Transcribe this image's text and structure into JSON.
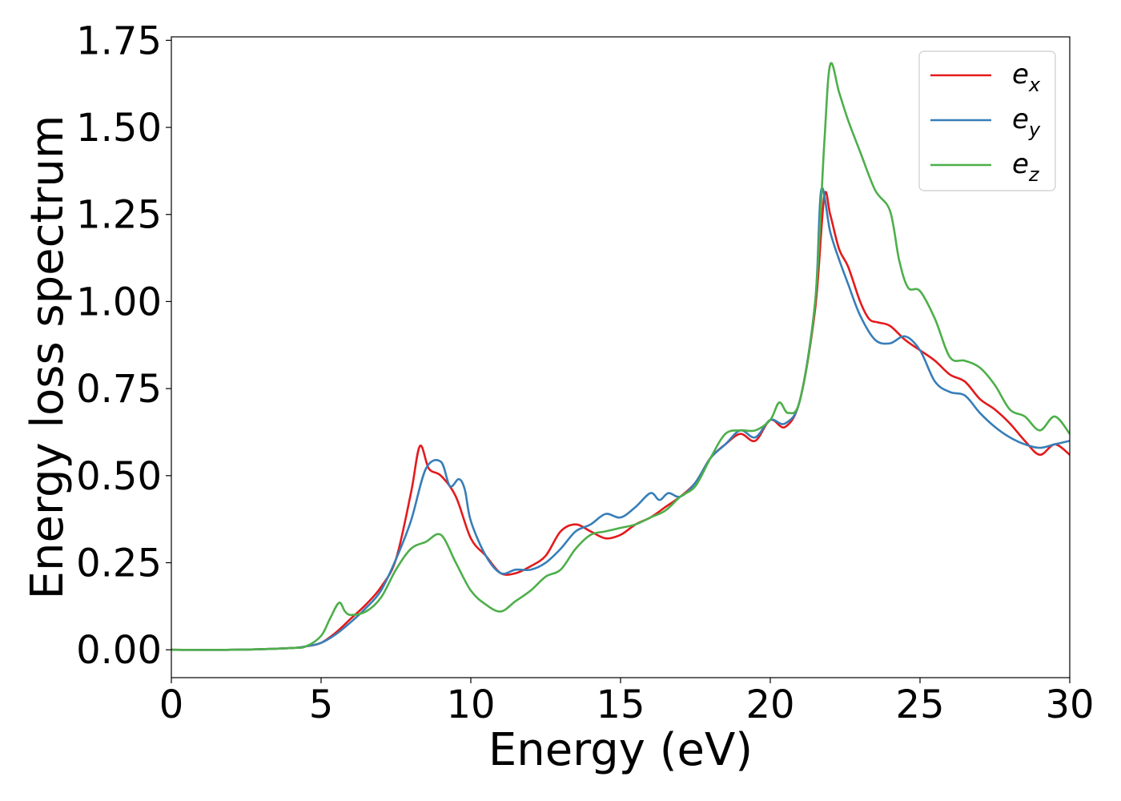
{
  "chart_data": {
    "type": "line",
    "title": "",
    "xlabel": "Energy (eV)",
    "ylabel": "Energy loss spectrum",
    "xlim": [
      0,
      30
    ],
    "ylim": [
      -0.08,
      1.76
    ],
    "x_ticks": [
      0,
      5,
      10,
      15,
      20,
      25,
      30
    ],
    "x_tick_labels": [
      "0",
      "5",
      "10",
      "15",
      "20",
      "25",
      "30"
    ],
    "y_ticks": [
      0.0,
      0.25,
      0.5,
      0.75,
      1.0,
      1.25,
      1.5,
      1.75
    ],
    "y_tick_labels": [
      "0.00",
      "0.25",
      "0.50",
      "0.75",
      "1.00",
      "1.25",
      "1.50",
      "1.75"
    ],
    "grid": false,
    "legend_position": "top-right",
    "series": [
      {
        "name": "e_x",
        "legend_base": "e",
        "legend_sub": "x",
        "color": "#e41a1c",
        "x": [
          0,
          2,
          4,
          4.5,
          5,
          5.5,
          6,
          6.5,
          7,
          7.5,
          8,
          8.3,
          8.6,
          9,
          9.5,
          10,
          10.5,
          11,
          11.5,
          12,
          12.5,
          13,
          13.5,
          14,
          14.5,
          15,
          15.5,
          16,
          16.5,
          17,
          17.5,
          18,
          18.5,
          19,
          19.5,
          20,
          20.5,
          21,
          21.5,
          21.8,
          22,
          22.3,
          22.6,
          23,
          23.3,
          23.6,
          24,
          24.5,
          25,
          25.5,
          26,
          26.5,
          27,
          27.5,
          28,
          28.5,
          29,
          29.5,
          30
        ],
        "y": [
          0.0,
          0.0,
          0.005,
          0.01,
          0.02,
          0.05,
          0.09,
          0.13,
          0.18,
          0.26,
          0.45,
          0.585,
          0.52,
          0.5,
          0.44,
          0.32,
          0.27,
          0.22,
          0.22,
          0.24,
          0.27,
          0.34,
          0.36,
          0.34,
          0.32,
          0.33,
          0.36,
          0.38,
          0.41,
          0.44,
          0.48,
          0.55,
          0.59,
          0.62,
          0.6,
          0.66,
          0.64,
          0.72,
          0.98,
          1.3,
          1.25,
          1.15,
          1.1,
          1.0,
          0.95,
          0.94,
          0.93,
          0.89,
          0.86,
          0.83,
          0.79,
          0.77,
          0.72,
          0.69,
          0.65,
          0.6,
          0.56,
          0.59,
          0.56
        ]
      },
      {
        "name": "e_y",
        "legend_base": "e",
        "legend_sub": "y",
        "color": "#377eb8",
        "x": [
          0,
          2,
          4,
          4.5,
          5,
          5.5,
          6,
          6.5,
          7,
          7.5,
          8,
          8.5,
          9,
          9.3,
          9.6,
          9.8,
          10,
          10.5,
          11,
          11.5,
          12,
          12.5,
          13,
          13.5,
          14,
          14.5,
          15,
          15.5,
          16,
          16.3,
          16.6,
          17,
          17.5,
          18,
          18.5,
          19,
          19.5,
          20,
          20.5,
          21,
          21.5,
          21.7,
          22,
          22.3,
          22.6,
          23,
          23.5,
          24,
          24.5,
          25,
          25.5,
          26,
          26.5,
          27,
          27.5,
          28,
          28.5,
          29,
          29.5,
          30
        ],
        "y": [
          0.0,
          0.0,
          0.005,
          0.01,
          0.02,
          0.045,
          0.08,
          0.12,
          0.17,
          0.26,
          0.37,
          0.52,
          0.54,
          0.47,
          0.49,
          0.46,
          0.37,
          0.27,
          0.22,
          0.23,
          0.23,
          0.25,
          0.29,
          0.34,
          0.36,
          0.39,
          0.38,
          0.41,
          0.45,
          0.43,
          0.45,
          0.44,
          0.48,
          0.55,
          0.59,
          0.63,
          0.61,
          0.66,
          0.65,
          0.72,
          1.0,
          1.32,
          1.2,
          1.12,
          1.05,
          0.96,
          0.89,
          0.88,
          0.9,
          0.86,
          0.77,
          0.74,
          0.73,
          0.68,
          0.64,
          0.61,
          0.59,
          0.58,
          0.59,
          0.6
        ]
      },
      {
        "name": "e_z",
        "legend_base": "e",
        "legend_sub": "z",
        "color": "#4daf4a",
        "x": [
          0,
          2,
          4,
          4.5,
          5,
          5.3,
          5.6,
          5.8,
          6,
          6.5,
          7,
          7.5,
          8,
          8.5,
          9,
          9.5,
          10,
          10.5,
          11,
          11.5,
          12,
          12.5,
          13,
          13.5,
          14,
          14.5,
          15,
          15.5,
          16,
          16.5,
          17,
          17.5,
          18,
          18.5,
          19,
          19.5,
          20,
          20.3,
          20.6,
          21,
          21.5,
          21.8,
          22,
          22.3,
          22.6,
          23,
          23.5,
          24,
          24.3,
          24.6,
          25,
          25.5,
          26,
          26.5,
          27,
          27.5,
          28,
          28.5,
          29,
          29.5,
          30
        ],
        "y": [
          0.0,
          0.0,
          0.005,
          0.01,
          0.04,
          0.09,
          0.135,
          0.11,
          0.1,
          0.11,
          0.15,
          0.23,
          0.29,
          0.31,
          0.33,
          0.25,
          0.17,
          0.13,
          0.11,
          0.14,
          0.17,
          0.21,
          0.23,
          0.29,
          0.33,
          0.34,
          0.35,
          0.36,
          0.38,
          0.4,
          0.44,
          0.47,
          0.55,
          0.62,
          0.63,
          0.63,
          0.66,
          0.71,
          0.68,
          0.72,
          1.0,
          1.45,
          1.68,
          1.6,
          1.52,
          1.43,
          1.32,
          1.26,
          1.12,
          1.04,
          1.03,
          0.95,
          0.84,
          0.83,
          0.81,
          0.76,
          0.69,
          0.67,
          0.63,
          0.67,
          0.62
        ]
      }
    ]
  }
}
